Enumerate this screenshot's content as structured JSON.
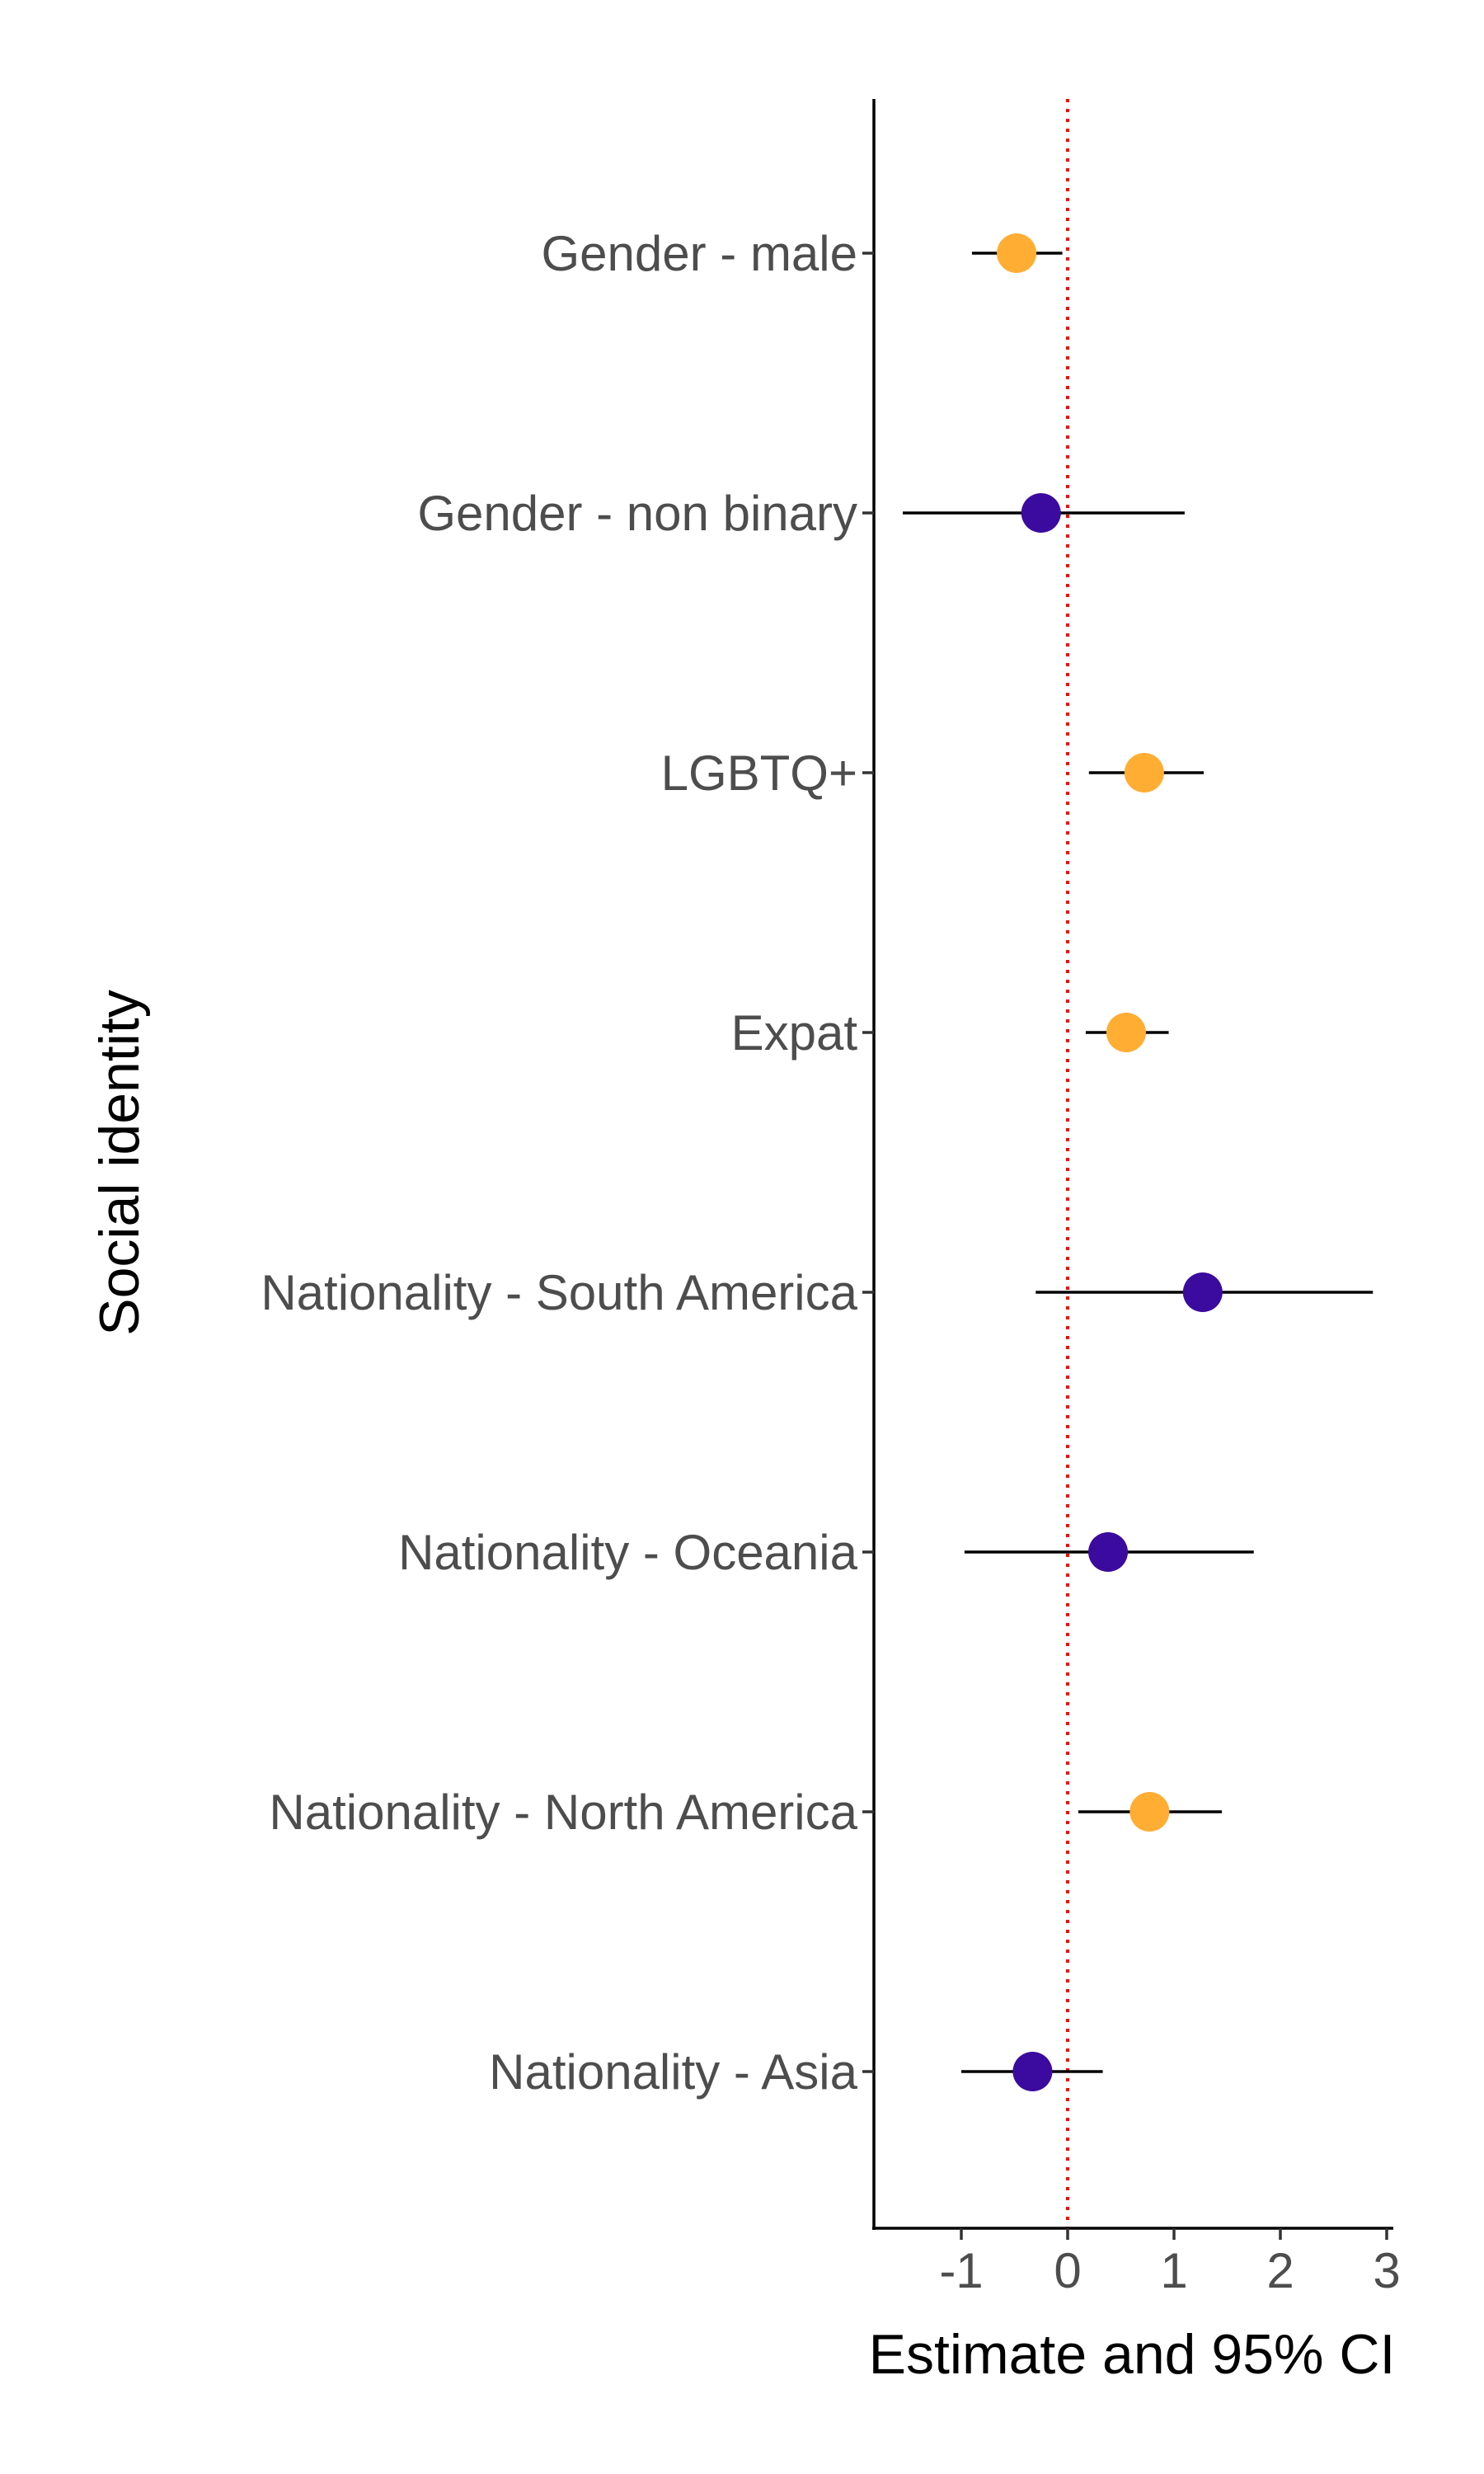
{
  "chart_data": {
    "type": "scatter",
    "subtype": "forest-plot",
    "title": "",
    "xlabel": "Estimate and 95% CI",
    "ylabel": "Social identity",
    "xlim": [
      -1.75,
      3.05
    ],
    "xticks": [
      -1,
      0,
      1,
      2,
      3
    ],
    "xtick_labels": [
      "-1",
      "0",
      "1",
      "2",
      "3"
    ],
    "reference_line": {
      "x": 0,
      "style": "dotted",
      "color": "#ff0000"
    },
    "grid": false,
    "legend": "none",
    "colors": {
      "orange": "#ffad33",
      "purple": "#3b0a9e",
      "text": "#4d4d4d",
      "axis": "#000000"
    },
    "categories": [
      "Gender - male",
      "Gender - non binary",
      "LGBTQ+",
      "Expat",
      "Nationality - South America",
      "Nationality - Oceania",
      "Nationality - North America",
      "Nationality - Asia"
    ],
    "points": [
      {
        "category": "Gender - male",
        "estimate": -0.48,
        "ci_low": -0.9,
        "ci_high": -0.05,
        "color": "#ffad33"
      },
      {
        "category": "Gender - non binary",
        "estimate": -0.25,
        "ci_low": -1.55,
        "ci_high": 1.1,
        "color": "#3b0a9e"
      },
      {
        "category": "LGBTQ+",
        "estimate": 0.72,
        "ci_low": 0.2,
        "ci_high": 1.28,
        "color": "#ffad33"
      },
      {
        "category": "Expat",
        "estimate": 0.55,
        "ci_low": 0.17,
        "ci_high": 0.95,
        "color": "#ffad33"
      },
      {
        "category": "Nationality - South America",
        "estimate": 1.27,
        "ci_low": -0.3,
        "ci_high": 2.87,
        "color": "#3b0a9e"
      },
      {
        "category": "Nationality - Oceania",
        "estimate": 0.38,
        "ci_low": -0.97,
        "ci_high": 1.75,
        "color": "#3b0a9e"
      },
      {
        "category": "Nationality - North America",
        "estimate": 0.77,
        "ci_low": 0.1,
        "ci_high": 1.45,
        "color": "#ffad33"
      },
      {
        "category": "Nationality - Asia",
        "estimate": -0.33,
        "ci_low": -1.0,
        "ci_high": 0.33,
        "color": "#3b0a9e"
      }
    ]
  }
}
